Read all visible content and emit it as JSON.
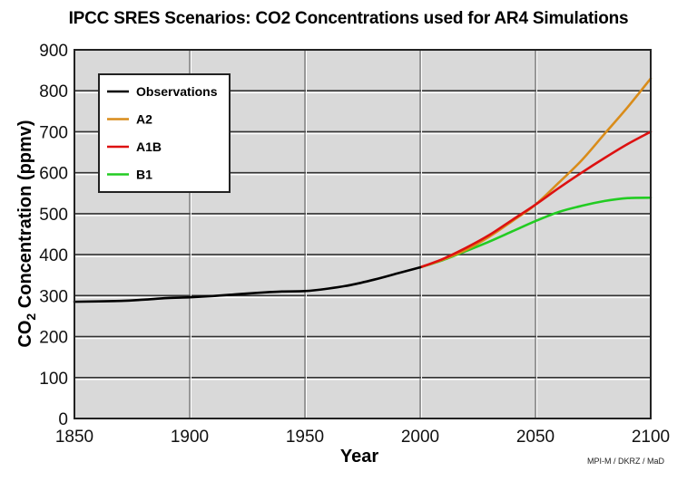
{
  "chart_data": {
    "type": "line",
    "title": "IPCC SRES Scenarios: CO2 Concentrations used for AR4 Simulations",
    "xlabel": "Year",
    "ylabel": "CO2 Concentration (ppmv)",
    "ylabel_parts": {
      "prefix": "CO",
      "subscript": "2",
      "suffix": " Concentration (ppmv)"
    },
    "xlim": [
      1850,
      2100
    ],
    "ylim": [
      0,
      900
    ],
    "xticks": [
      1850,
      1900,
      1950,
      2000,
      2050,
      2100
    ],
    "yticks": [
      0,
      100,
      200,
      300,
      400,
      500,
      600,
      700,
      800,
      900
    ],
    "grid": true,
    "legend_position": "top-left",
    "credit": "MPI-M / DKRZ / MaD",
    "series": [
      {
        "name": "Observations",
        "color": "#000000",
        "x": [
          1850,
          1870,
          1880,
          1890,
          1900,
          1910,
          1920,
          1930,
          1940,
          1950,
          1960,
          1970,
          1980,
          1990,
          2000
        ],
        "y": [
          285,
          287,
          290,
          294,
          296,
          299,
          303,
          307,
          310,
          311,
          317,
          326,
          339,
          354,
          369
        ]
      },
      {
        "name": "A2",
        "color": "#d98c1a",
        "x": [
          2000,
          2010,
          2020,
          2030,
          2040,
          2050,
          2060,
          2070,
          2080,
          2090,
          2100
        ],
        "y": [
          369,
          388,
          412,
          444,
          482,
          522,
          575,
          630,
          695,
          760,
          830
        ]
      },
      {
        "name": "A1B",
        "color": "#dd1111",
        "x": [
          2000,
          2010,
          2020,
          2030,
          2040,
          2050,
          2060,
          2070,
          2080,
          2090,
          2100
        ],
        "y": [
          369,
          390,
          417,
          448,
          485,
          522,
          562,
          600,
          636,
          670,
          700
        ]
      },
      {
        "name": "B1",
        "color": "#22cc22",
        "x": [
          2000,
          2010,
          2020,
          2030,
          2040,
          2050,
          2060,
          2070,
          2080,
          2090,
          2100
        ],
        "y": [
          369,
          387,
          409,
          432,
          457,
          482,
          504,
          519,
          531,
          538,
          539
        ]
      }
    ]
  }
}
